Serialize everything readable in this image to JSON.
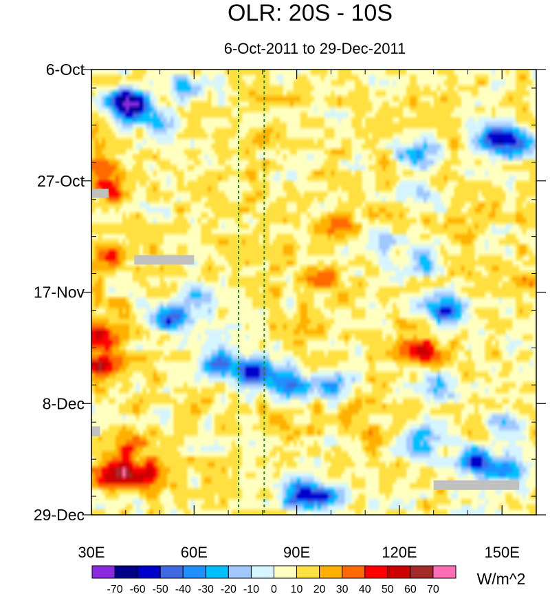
{
  "chart_data": {
    "type": "heatmap",
    "title": "OLR: 20S - 10S",
    "subtitle": "6-Oct-2011 to 29-Dec-2011",
    "xlabel": "",
    "ylabel": "",
    "units": "W/m^2",
    "xlim": [
      30,
      160
    ],
    "x_ticks": [
      {
        "value": 30,
        "label": "30E"
      },
      {
        "value": 60,
        "label": "60E"
      },
      {
        "value": 90,
        "label": "90E"
      },
      {
        "value": 120,
        "label": "120E"
      },
      {
        "value": 150,
        "label": "150E"
      }
    ],
    "time_range_days": [
      0,
      84
    ],
    "y_ticks": [
      {
        "day": 0,
        "label": "6-Oct"
      },
      {
        "day": 21,
        "label": "27-Oct"
      },
      {
        "day": 42,
        "label": "17-Nov"
      },
      {
        "day": 63,
        "label": "8-Dec"
      },
      {
        "day": 84,
        "label": "29-Dec"
      }
    ],
    "reference_lines_lon": [
      73,
      80.5
    ],
    "color_levels": [
      -70,
      -60,
      -50,
      -40,
      -30,
      -20,
      -10,
      0,
      10,
      20,
      30,
      40,
      50,
      60,
      70
    ],
    "colors": [
      "#8a2be2",
      "#00008b",
      "#0000cd",
      "#4169e1",
      "#1e90ff",
      "#00bfff",
      "#a0c8ff",
      "#d4f4ff",
      "#ffffc0",
      "#ffe040",
      "#ffb000",
      "#ff6a00",
      "#ff0000",
      "#cc0000",
      "#a52a2a",
      "#ff6eb4"
    ],
    "missing_color": "#c0c0c0",
    "grid": false,
    "legend_position": "bottom",
    "features": [
      {
        "lon": 43,
        "day": 7,
        "value": -70
      },
      {
        "lon": 38,
        "day": 6,
        "value": -45
      },
      {
        "lon": 57,
        "day": 3,
        "value": -30
      },
      {
        "lon": 52,
        "day": 11,
        "value": -30
      },
      {
        "lon": 33,
        "day": 19,
        "value": 35
      },
      {
        "lon": 36,
        "day": 23,
        "value": 25
      },
      {
        "lon": 36,
        "day": 35,
        "value": 35
      },
      {
        "lon": 33,
        "day": 50,
        "value": 40
      },
      {
        "lon": 33,
        "day": 56,
        "value": 45
      },
      {
        "lon": 36,
        "day": 76,
        "value": 50
      },
      {
        "lon": 45,
        "day": 77,
        "value": 45
      },
      {
        "lon": 42,
        "day": 71,
        "value": 30
      },
      {
        "lon": 54,
        "day": 47,
        "value": -55
      },
      {
        "lon": 62,
        "day": 43,
        "value": -30
      },
      {
        "lon": 67,
        "day": 55,
        "value": -50
      },
      {
        "lon": 77,
        "day": 57,
        "value": -60
      },
      {
        "lon": 88,
        "day": 59,
        "value": -50
      },
      {
        "lon": 100,
        "day": 60,
        "value": -35
      },
      {
        "lon": 90,
        "day": 80,
        "value": -55
      },
      {
        "lon": 98,
        "day": 81,
        "value": -45
      },
      {
        "lon": 148,
        "day": 13,
        "value": -55
      },
      {
        "lon": 155,
        "day": 14,
        "value": -45
      },
      {
        "lon": 126,
        "day": 16,
        "value": -40
      },
      {
        "lon": 127,
        "day": 36,
        "value": -35
      },
      {
        "lon": 133,
        "day": 45,
        "value": -60
      },
      {
        "lon": 125,
        "day": 23,
        "value": -30
      },
      {
        "lon": 113,
        "day": 32,
        "value": -25
      },
      {
        "lon": 143,
        "day": 74,
        "value": -55
      },
      {
        "lon": 152,
        "day": 76,
        "value": -45
      },
      {
        "lon": 126,
        "day": 70,
        "value": -40
      },
      {
        "lon": 150,
        "day": 67,
        "value": -30
      },
      {
        "lon": 130,
        "day": 60,
        "value": -25
      },
      {
        "lon": 126,
        "day": 53,
        "value": 45
      },
      {
        "lon": 102,
        "day": 29,
        "value": 18
      },
      {
        "lon": 98,
        "day": 39,
        "value": 18
      },
      {
        "lon": 84,
        "day": 12,
        "value": 15
      },
      {
        "lon": 84,
        "day": 66,
        "value": 18
      },
      {
        "lon": 112,
        "day": 70,
        "value": 15
      },
      {
        "lon": 75,
        "day": 33,
        "value": 15
      },
      {
        "lon": 140,
        "day": 30,
        "value": 12
      },
      {
        "lon": 156,
        "day": 40,
        "value": 15
      },
      {
        "lon": 140,
        "day": 84,
        "value": -20
      }
    ],
    "missing": [
      {
        "lon": [
          30,
          35
        ],
        "day": [
          22.5,
          24.2
        ]
      },
      {
        "lon": [
          42.5,
          60
        ],
        "day": [
          35,
          36.8
        ]
      },
      {
        "lon": [
          30,
          32.5
        ],
        "day": [
          67.3,
          69.2
        ]
      },
      {
        "lon": [
          130,
          155
        ],
        "day": [
          77.5,
          79.3
        ]
      }
    ]
  }
}
